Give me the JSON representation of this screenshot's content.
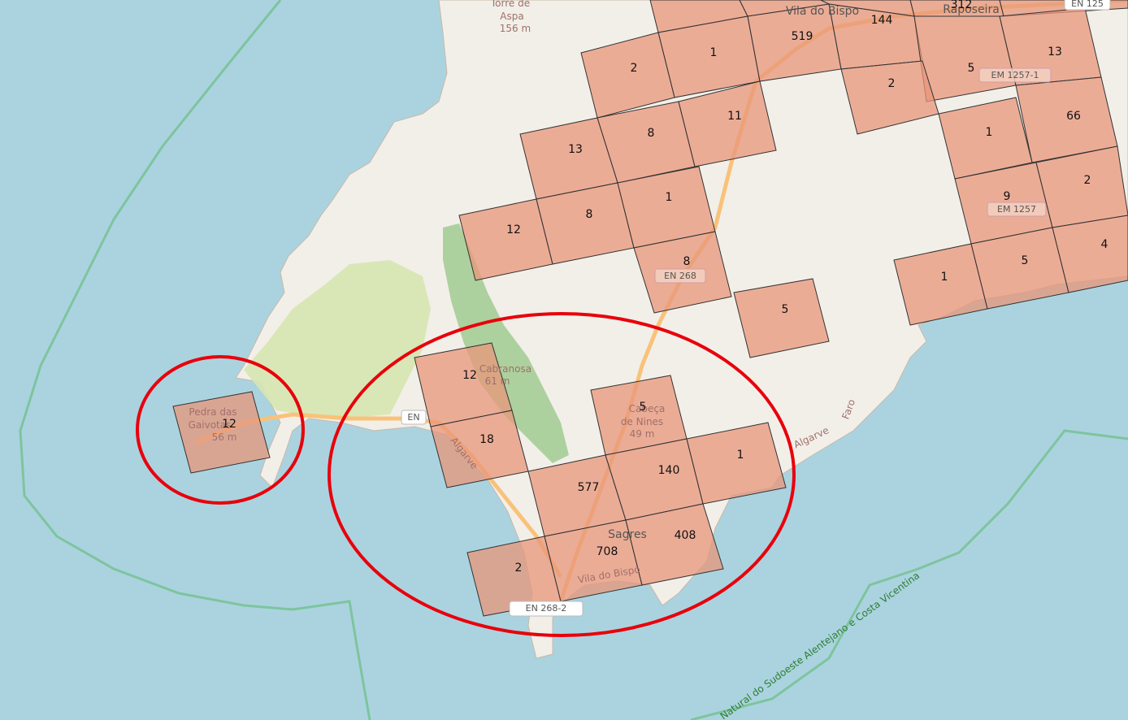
{
  "map": {
    "place_labels": {
      "torre_de_aspa": [
        "Torre de",
        "Aspa",
        "156 m"
      ],
      "vila_do_bispo": "Vila do Bispo",
      "raposeira": "Raposeira",
      "pedra_das_gaivotas": [
        "Pedra das",
        "Gaivotas",
        "56 m"
      ],
      "cabranosa": [
        "Cabranosa",
        "61 m"
      ],
      "cabeca_de_nines": [
        "Cabeça",
        "de Nines",
        "49 m"
      ],
      "sagres": "Sagres",
      "road_vila_do_bispo": "Vila do Bispo",
      "algarve_1": "Algarve",
      "algarve_2": "Algarve",
      "faro": "Faro"
    },
    "road_shields": {
      "en125": "EN 125",
      "em1257_1": "EM 1257-1",
      "em1257": "EM 1257",
      "en268": "EN 268",
      "en268_2": "EN 268-2",
      "en_partial": "EN"
    },
    "park_boundary_label": "Natural do Sudoeste Alentejano e Costa Vicentina",
    "cell_counts": {
      "c312": "312",
      "c144": "144",
      "c519": "519",
      "c1a": "1",
      "c2a": "2",
      "c13a": "13",
      "c5a": "5",
      "c2b": "2",
      "c8a": "8",
      "c11": "11",
      "c13b": "13",
      "c66": "66",
      "c1b": "1",
      "c12a": "12",
      "c8b": "8",
      "c1c": "1",
      "c9": "9",
      "c2c": "2",
      "c8c": "8",
      "c1d": "1",
      "c5b": "5",
      "c4": "4",
      "c5c": "5",
      "c12b": "12",
      "c5d": "5",
      "c12c": "12",
      "c18": "18",
      "c140": "140",
      "c1e": "1",
      "c577": "577",
      "c408": "408",
      "c708": "708",
      "c2d": "2"
    },
    "colors": {
      "sea": "#aad3df",
      "land": "#f2efe9",
      "cell_fill": "#e8957a",
      "highlight_circle": "#e8000b",
      "park_green": "#c8e0a8",
      "forest": "#add19e",
      "road_major": "#f9b26a"
    }
  }
}
